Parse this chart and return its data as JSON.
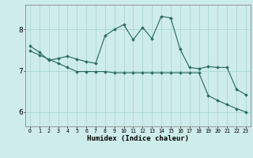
{
  "xlabel": "Humidex (Indice chaleur)",
  "bg_color": "#ceecea",
  "line_color": "#2d6e62",
  "grid_color": "#aad6d2",
  "xlim": [
    -0.5,
    23.5
  ],
  "ylim": [
    5.65,
    8.6
  ],
  "yticks": [
    6,
    7,
    8
  ],
  "xticks": [
    0,
    1,
    2,
    3,
    4,
    5,
    6,
    7,
    8,
    9,
    10,
    11,
    12,
    13,
    14,
    15,
    16,
    17,
    18,
    19,
    20,
    21,
    22,
    23
  ],
  "curve1_y": [
    7.6,
    7.45,
    7.25,
    7.3,
    7.35,
    7.28,
    7.22,
    7.18,
    7.85,
    8.0,
    8.12,
    7.75,
    8.05,
    7.78,
    8.32,
    8.28,
    7.52,
    7.08,
    7.05,
    7.1,
    7.08,
    7.08,
    6.55,
    6.42
  ],
  "curve2_y": [
    7.48,
    7.38,
    7.28,
    7.18,
    7.08,
    6.98,
    6.98,
    6.98,
    6.98,
    6.95,
    6.95,
    6.95,
    6.95,
    6.95,
    6.95,
    6.95,
    6.95,
    6.95,
    6.95,
    6.4,
    6.28,
    6.18,
    6.08,
    6.0
  ],
  "marker": "D",
  "markersize": 2.0,
  "linewidth": 0.85
}
